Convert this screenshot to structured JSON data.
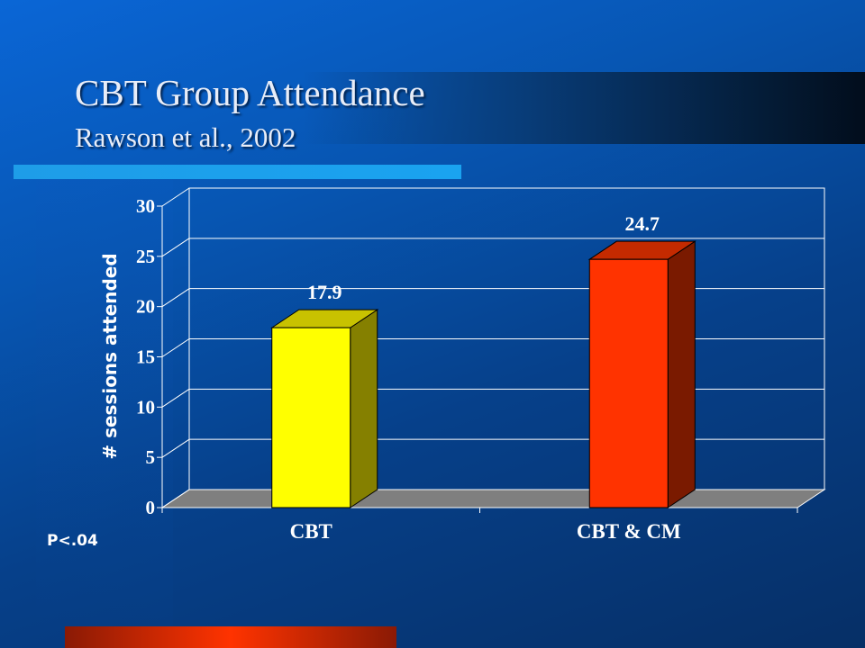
{
  "slide": {
    "title": "CBT Group Attendance",
    "subtitle": "Rawson et al., 2002",
    "footnote": "P<.04"
  },
  "colors": {
    "cbt_face": "#ffff00",
    "cbt_top": "#c8c200",
    "cbt_side": "#858000",
    "cbtcm_face": "#ff3300",
    "cbtcm_top": "#c42a00",
    "cbtcm_side": "#7a1a00",
    "floor": "#7f7f7f",
    "axis_text": "#ffffff",
    "data_label": "#ffffff"
  },
  "chart_data": {
    "type": "bar",
    "categories": [
      "CBT",
      "CBT & CM"
    ],
    "values": [
      17.9,
      24.7
    ],
    "data_labels": [
      "17.9",
      "24.7"
    ],
    "ylabel": "# sessions attended",
    "ylim": [
      0,
      30
    ],
    "yticks": [
      0,
      5,
      10,
      15,
      20,
      25,
      30
    ],
    "grid": true,
    "three_d": true
  }
}
